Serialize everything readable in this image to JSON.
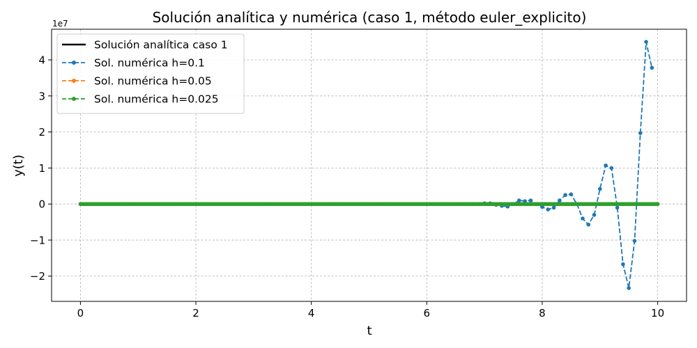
{
  "chart_data": {
    "type": "line",
    "title": "Solución analítica y numérica (caso 1, método euler_explicito)",
    "xlabel": "t",
    "ylabel": "y(t)",
    "y_offset_label": "1e7",
    "xlim": [
      -0.5,
      10.5
    ],
    "ylim": [
      -2.7,
      4.85
    ],
    "xticks": [
      0,
      2,
      4,
      6,
      8,
      10
    ],
    "xtick_labels": [
      "0",
      "2",
      "4",
      "6",
      "8",
      "10"
    ],
    "yticks": [
      -2,
      -1,
      0,
      1,
      2,
      3,
      4
    ],
    "ytick_labels": [
      "−2",
      "−1",
      "0",
      "1",
      "2",
      "3",
      "4"
    ],
    "grid": true,
    "legend_position": "top-left",
    "y_units": "×1e7",
    "series": [
      {
        "name": "Solución analítica caso 1",
        "color": "#000000",
        "style": "solid",
        "marker": "none",
        "x": [
          0,
          10
        ],
        "y": [
          0,
          0
        ]
      },
      {
        "name": "Sol. numérica h=0.1",
        "color": "#1f77b4",
        "style": "dashed",
        "marker": "circle",
        "x": [
          6.7,
          6.8,
          6.9,
          7.0,
          7.1,
          7.2,
          7.3,
          7.4,
          7.5,
          7.6,
          7.7,
          7.8,
          7.9,
          8.0,
          8.1,
          8.2,
          8.3,
          8.4,
          8.5,
          8.6,
          8.7,
          8.8,
          8.9,
          9.0,
          9.1,
          9.2,
          9.3,
          9.4,
          9.5,
          9.6,
          9.7,
          9.8,
          9.9
        ],
        "y": [
          0.0,
          0.0,
          0.0,
          0.02,
          0.02,
          -0.02,
          -0.05,
          -0.07,
          0.0,
          0.1,
          0.08,
          0.1,
          0.0,
          -0.08,
          -0.15,
          -0.1,
          0.1,
          0.25,
          0.27,
          0.0,
          -0.4,
          -0.57,
          -0.3,
          0.42,
          1.07,
          1.0,
          -0.1,
          -1.67,
          -2.33,
          -1.02,
          1.97,
          4.5,
          3.78
        ]
      },
      {
        "name": "Sol. numérica h=0.05",
        "color": "#ff7f0e",
        "style": "dashed",
        "marker": "circle",
        "x_start": 0,
        "x_end": 10,
        "step": 0.05,
        "y_constant": 0
      },
      {
        "name": "Sol. numérica h=0.025",
        "color": "#2ca02c",
        "style": "dashed",
        "marker": "circle",
        "x_start": 0,
        "x_end": 10,
        "step": 0.025,
        "y_constant": 0
      }
    ]
  }
}
